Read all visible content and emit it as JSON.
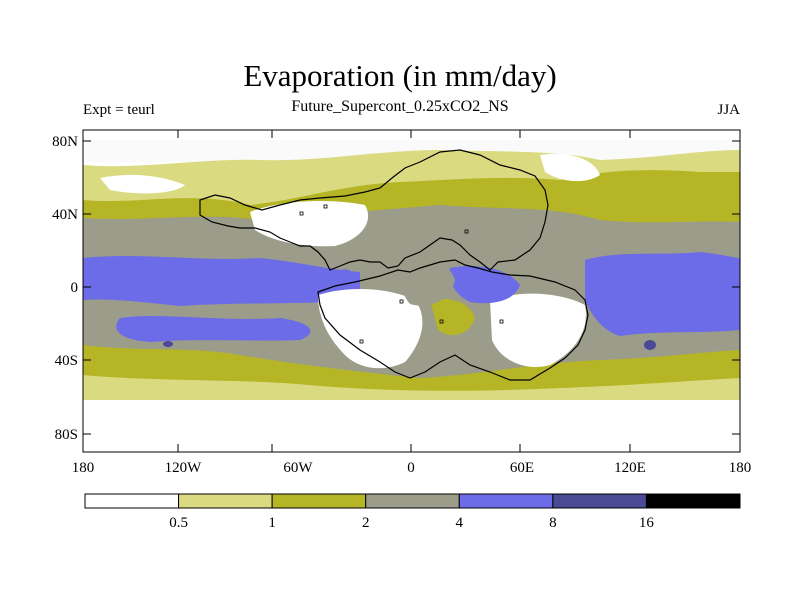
{
  "title": "Evaporation (in mm/day)",
  "subtitle": "Future_Supercont_0.25xCO2_NS",
  "left_string": "Expt = teurl",
  "right_string": "JJA",
  "lat_labels": [
    "80N",
    "40N",
    "0",
    "40S",
    "80S"
  ],
  "lon_labels": [
    "180",
    "120W",
    "60W",
    "0",
    "60E",
    "120E",
    "180"
  ],
  "colorbar": {
    "boundaries": [
      "0.5",
      "1",
      "2",
      "4",
      "8",
      "16"
    ],
    "colors": [
      "#ffffff",
      "#dada80",
      "#b5b526",
      "#9c9c8a",
      "#6c6ce8",
      "#4a4a96",
      "#000000"
    ]
  },
  "chart_data": {
    "type": "heatmap",
    "title": "Evaporation (in mm/day)",
    "subtitle": "Future_Supercont_0.25xCO2_NS",
    "xlim": [
      -180,
      180
    ],
    "ylim": [
      -90,
      90
    ],
    "x_ticks": [
      -180,
      -120,
      -60,
      0,
      60,
      120,
      180
    ],
    "y_ticks": [
      80,
      40,
      0,
      -40,
      -80
    ],
    "contour_levels": [
      0.5,
      1,
      2,
      4,
      8,
      16
    ]
  }
}
